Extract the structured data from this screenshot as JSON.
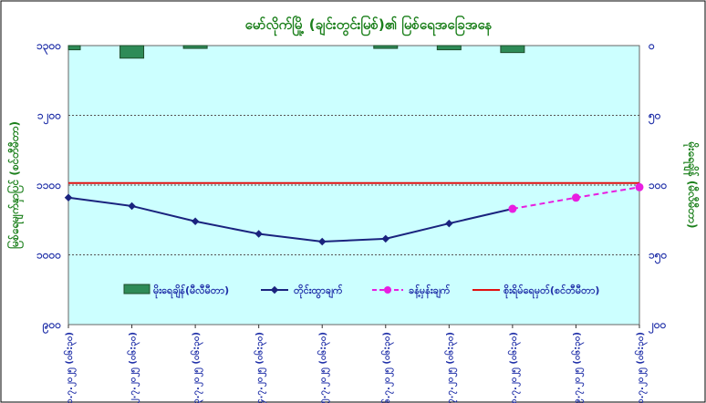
{
  "chart_data": {
    "type": "line",
    "title": "မော်လိုက်မြို့ (ချင်းတွင်းမြစ်)၏ မြစ်ရေအခြေအနေ",
    "ylabel_left": "မြစ်ရေမျက်နှာပြင် (စင်တီမီတာ)",
    "ylabel_right": "မိုးရေချိန် (မီလီမီတာ)",
    "left_axis": {
      "ylim": [
        900,
        1300
      ],
      "ticks": [
        "၁၃၀၀",
        "၁၂၀၀",
        "၁၁၀၀",
        "၁၀၀၀",
        "၉၀၀"
      ],
      "tick_values": [
        1300,
        1200,
        1100,
        1000,
        900
      ]
    },
    "right_axis": {
      "ylim": [
        0,
        200
      ],
      "inverted": true,
      "ticks": [
        "၀",
        "၅၀",
        "၁၀၀",
        "၁၅၀",
        "၂၀၀"
      ],
      "tick_values": [
        0,
        50,
        100,
        150,
        200
      ]
    },
    "x_tick_labels": [
      "၁.၇.၂၀၂၅ (၀၆:၃၀)",
      "၂.၇.၂၀၂၅ (၀၆:၃၀)",
      "၃.၇.၂၀၂၅ (၀၆:၃၀)",
      "၄.၇.၂၀၂၅ (၀၆:၃၀)",
      "၅.၇.၂၀၂၅ (၀၆:၃၀)",
      "၆.၇.၂၀၂၅ (၀၆:၃၀)",
      "၇.၇.၂၀၂၅ (၀၆:၃၀)",
      "၈.၇.၂၀၂၅ (၀၆:၃၀)",
      "၉.၇.၂၀၂၅ (၀၆:၃၀)",
      "၁၀.၇.၂၀၂၅ (၀၆:၃၀)"
    ],
    "series": [
      {
        "name": "မိုးရေချိန်(မီလီမီတာ)",
        "kind": "bar",
        "axis": "right",
        "color": "#2e8b57",
        "values": [
          3,
          9,
          2,
          null,
          null,
          2,
          3,
          5,
          null,
          null
        ]
      },
      {
        "name": "တိုင်းထွာချက်",
        "kind": "line",
        "axis": "left",
        "color": "#1a237e",
        "values": [
          1082,
          1070,
          1048,
          1030,
          1019,
          1023,
          1045,
          1066,
          null,
          null
        ]
      },
      {
        "name": "ခန့်မှန်းချက်",
        "kind": "line-dashed",
        "axis": "left",
        "color": "#e81ee0",
        "values": [
          null,
          null,
          null,
          null,
          null,
          null,
          null,
          1066,
          1082,
          1097
        ]
      },
      {
        "name": "စိုးရိမ်ရေမှတ်(စင်တီမီတာ)",
        "kind": "hline",
        "axis": "left",
        "color": "#e01010",
        "value": 1103
      }
    ],
    "grid": true,
    "legend_position": "bottom-inside"
  }
}
